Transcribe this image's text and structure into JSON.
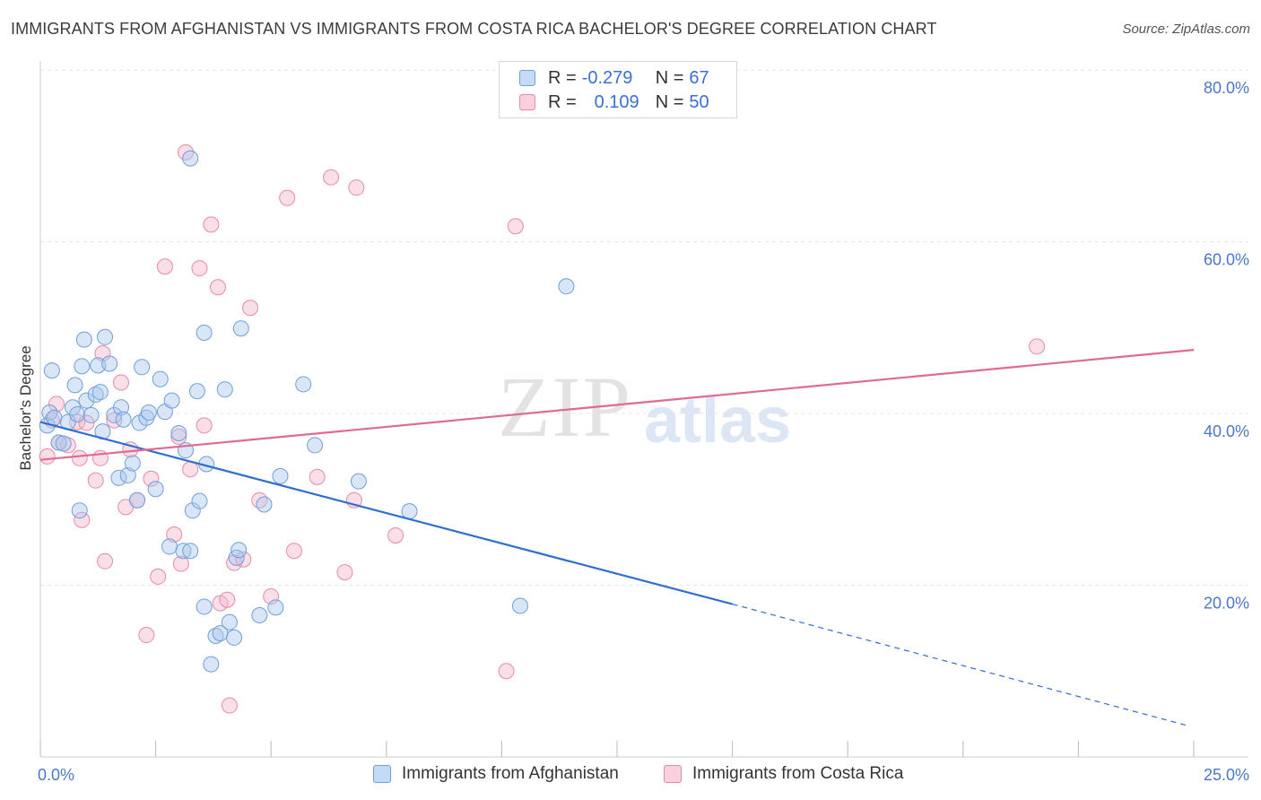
{
  "header": {
    "title": "IMMIGRANTS FROM AFGHANISTAN VS IMMIGRANTS FROM COSTA RICA BACHELOR'S DEGREE CORRELATION CHART",
    "source": "Source: ZipAtlas.com"
  },
  "watermark": {
    "zip": "ZIP",
    "atlas": "atlas"
  },
  "legend": {
    "rows": [
      {
        "r_label": "R = ",
        "r_value": "-0.279",
        "n_label": "N = ",
        "n_value": "67"
      },
      {
        "r_label": "R = ",
        "r_value": "0.109",
        "n_label": "N = ",
        "n_value": "50"
      }
    ]
  },
  "colors": {
    "blue_fill": "#aac8f0",
    "blue_stroke": "#6e9fdc",
    "blue_line": "#2f6fcf",
    "pink_fill": "#f7b8cc",
    "pink_stroke": "#e889a9",
    "pink_line": "#e06a92",
    "grid": "#e4e4e4",
    "tick": "#4a78c8"
  },
  "chart_data": {
    "type": "scatter",
    "title": "IMMIGRANTS FROM AFGHANISTAN VS IMMIGRANTS FROM COSTA RICA BACHELOR'S DEGREE CORRELATION CHART",
    "xlabel": "",
    "ylabel": "Bachelor's Degree",
    "xlim": [
      0,
      25
    ],
    "ylim": [
      0,
      80
    ],
    "x_tick_labels": [
      "0.0%",
      "25.0%"
    ],
    "y_ticks": [
      20,
      40,
      60,
      80
    ],
    "y_tick_labels": [
      "20.0%",
      "40.0%",
      "60.0%",
      "80.0%"
    ],
    "legend_position": "top-center",
    "series": [
      {
        "name": "Immigrants from Afghanistan",
        "trend": {
          "x0": 0,
          "y0": 39.0,
          "x1": 15.0,
          "y1": 17.8,
          "dash_to_x": 24.9,
          "dash_to_y": 3.6
        },
        "points": [
          [
            0.15,
            38.6
          ],
          [
            0.2,
            40.1
          ],
          [
            0.25,
            45.0
          ],
          [
            0.3,
            39.5
          ],
          [
            0.4,
            36.6
          ],
          [
            0.5,
            36.5
          ],
          [
            0.6,
            39.0
          ],
          [
            0.7,
            40.7
          ],
          [
            0.75,
            43.3
          ],
          [
            0.8,
            39.9
          ],
          [
            0.85,
            28.7
          ],
          [
            0.9,
            45.5
          ],
          [
            0.95,
            48.6
          ],
          [
            1.0,
            41.5
          ],
          [
            1.1,
            39.8
          ],
          [
            1.2,
            42.2
          ],
          [
            1.25,
            45.6
          ],
          [
            1.3,
            42.5
          ],
          [
            1.35,
            37.9
          ],
          [
            1.4,
            48.9
          ],
          [
            1.5,
            45.8
          ],
          [
            1.6,
            39.8
          ],
          [
            1.7,
            32.5
          ],
          [
            1.75,
            40.7
          ],
          [
            1.8,
            39.3
          ],
          [
            1.9,
            32.8
          ],
          [
            2.0,
            34.2
          ],
          [
            2.1,
            29.9
          ],
          [
            2.15,
            38.9
          ],
          [
            2.2,
            45.4
          ],
          [
            2.3,
            39.5
          ],
          [
            2.35,
            40.1
          ],
          [
            2.5,
            31.2
          ],
          [
            2.6,
            44.0
          ],
          [
            2.7,
            40.2
          ],
          [
            2.8,
            24.5
          ],
          [
            2.85,
            41.5
          ],
          [
            3.0,
            37.7
          ],
          [
            3.1,
            24.0
          ],
          [
            3.15,
            35.7
          ],
          [
            3.25,
            24.0
          ],
          [
            3.3,
            28.7
          ],
          [
            3.4,
            42.6
          ],
          [
            3.45,
            29.8
          ],
          [
            3.55,
            17.5
          ],
          [
            3.6,
            34.1
          ],
          [
            3.7,
            10.8
          ],
          [
            3.8,
            14.1
          ],
          [
            3.9,
            14.4
          ],
          [
            4.0,
            42.8
          ],
          [
            4.1,
            15.7
          ],
          [
            4.2,
            13.9
          ],
          [
            4.25,
            23.2
          ],
          [
            4.3,
            24.1
          ],
          [
            4.35,
            49.9
          ],
          [
            3.55,
            49.4
          ],
          [
            3.25,
            69.7
          ],
          [
            4.75,
            16.5
          ],
          [
            4.85,
            29.4
          ],
          [
            5.1,
            17.4
          ],
          [
            5.2,
            32.7
          ],
          [
            5.7,
            43.4
          ],
          [
            5.95,
            36.3
          ],
          [
            6.9,
            32.1
          ],
          [
            8.0,
            28.6
          ],
          [
            10.4,
            17.6
          ],
          [
            11.4,
            54.8
          ]
        ]
      },
      {
        "name": "Immigrants from Costa Rica",
        "trend": {
          "x0": 0,
          "y0": 34.6,
          "x1": 25.0,
          "y1": 47.4
        },
        "points": [
          [
            0.15,
            35.0
          ],
          [
            0.25,
            39.2
          ],
          [
            0.4,
            36.6
          ],
          [
            0.6,
            36.3
          ],
          [
            0.8,
            39.0
          ],
          [
            0.85,
            34.8
          ],
          [
            0.9,
            27.6
          ],
          [
            1.0,
            38.9
          ],
          [
            1.2,
            32.2
          ],
          [
            1.3,
            34.8
          ],
          [
            1.35,
            47.0
          ],
          [
            1.4,
            22.8
          ],
          [
            1.6,
            39.2
          ],
          [
            1.75,
            43.6
          ],
          [
            1.85,
            29.1
          ],
          [
            1.95,
            35.8
          ],
          [
            2.1,
            29.9
          ],
          [
            2.3,
            14.2
          ],
          [
            2.4,
            32.4
          ],
          [
            2.55,
            21.0
          ],
          [
            2.7,
            57.1
          ],
          [
            2.9,
            25.9
          ],
          [
            3.0,
            37.3
          ],
          [
            3.05,
            22.5
          ],
          [
            3.15,
            70.4
          ],
          [
            3.25,
            33.5
          ],
          [
            3.45,
            56.9
          ],
          [
            3.55,
            38.6
          ],
          [
            3.7,
            62.0
          ],
          [
            3.85,
            54.7
          ],
          [
            3.9,
            17.9
          ],
          [
            4.05,
            18.3
          ],
          [
            4.1,
            6.0
          ],
          [
            4.2,
            22.6
          ],
          [
            4.4,
            23.0
          ],
          [
            4.55,
            52.3
          ],
          [
            4.75,
            29.9
          ],
          [
            5.0,
            18.7
          ],
          [
            5.35,
            65.1
          ],
          [
            5.5,
            24.0
          ],
          [
            6.0,
            32.6
          ],
          [
            6.3,
            67.5
          ],
          [
            6.6,
            21.5
          ],
          [
            6.8,
            29.9
          ],
          [
            6.85,
            66.3
          ],
          [
            7.7,
            25.8
          ],
          [
            10.1,
            10.0
          ],
          [
            10.3,
            61.8
          ],
          [
            21.6,
            47.8
          ],
          [
            0.35,
            41.1
          ]
        ]
      }
    ]
  },
  "bottom_legend": {
    "items": [
      {
        "label": "Immigrants from Afghanistan"
      },
      {
        "label": "Immigrants from Costa Rica"
      }
    ]
  }
}
